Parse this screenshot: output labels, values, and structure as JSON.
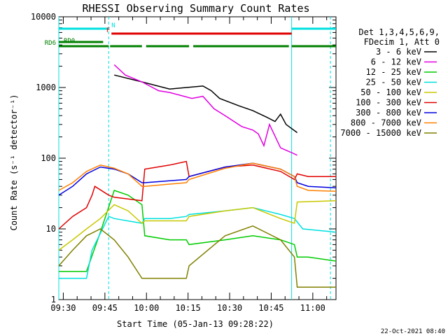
{
  "chart_data": {
    "type": "line",
    "title": "RHESSI Observing Summary Count Rates",
    "xlabel": "Start Time (05-Jan-13 09:28:22)",
    "ylabel": "Count Rate (s⁻¹ detector⁻¹)",
    "yscale": "log",
    "ylim": [
      1,
      10000
    ],
    "xlim_minutes": [
      0,
      100
    ],
    "x_ticks": [
      "09:30",
      "09:45",
      "10:00",
      "10:15",
      "10:30",
      "10:45",
      "11:00"
    ],
    "y_ticks": [
      "1",
      "10",
      "100",
      "1000",
      "10000"
    ],
    "date_stamp": "22-Oct-2021 08:40",
    "legend_header": [
      "Det 1,3,4,5,6,9,",
      "FDecim 1, Att 0"
    ],
    "series": [
      {
        "name": "3 - 6 keV",
        "color": "#000000",
        "x": [
          20,
          30,
          40,
          52,
          55,
          58,
          65,
          70,
          75,
          78,
          80,
          82,
          86
        ],
        "y": [
          1500,
          1200,
          950,
          1050,
          900,
          700,
          550,
          470,
          380,
          330,
          420,
          300,
          230
        ]
      },
      {
        "name": "6 - 12 keV",
        "color": "#e000e0",
        "x": [
          20,
          24,
          30,
          36,
          40,
          48,
          52,
          56,
          60,
          66,
          70,
          72,
          74,
          76,
          80,
          84,
          86
        ],
        "y": [
          2100,
          1500,
          1200,
          900,
          850,
          700,
          750,
          500,
          400,
          280,
          250,
          220,
          150,
          300,
          140,
          120,
          110
        ]
      },
      {
        "name": "12 - 25 keV",
        "color": "#00cc00",
        "x": [
          0,
          10,
          15,
          20,
          25,
          30,
          31,
          40,
          46,
          47,
          60,
          70,
          80,
          85,
          86,
          90,
          100
        ],
        "y": [
          2.5,
          2.5,
          9,
          35,
          30,
          22,
          8,
          7,
          7,
          6,
          7,
          8,
          7,
          6,
          4,
          4,
          3.5
        ]
      },
      {
        "name": "25 - 50 keV",
        "color": "#00e0e0",
        "x": [
          0,
          10,
          12,
          18,
          20,
          30,
          31,
          40,
          46,
          47,
          60,
          70,
          80,
          85,
          88,
          100
        ],
        "y": [
          2,
          2,
          5,
          15,
          14,
          12,
          14,
          14,
          15,
          16,
          18,
          20,
          16,
          14,
          10,
          9
        ]
      },
      {
        "name": "50 - 100 keV",
        "color": "#c8c800",
        "x": [
          0,
          5,
          10,
          15,
          20,
          25,
          30,
          31,
          40,
          46,
          47,
          60,
          70,
          80,
          85,
          86,
          100
        ],
        "y": [
          5,
          7,
          10,
          14,
          22,
          18,
          12,
          13,
          13,
          13,
          15,
          18,
          20,
          14,
          12,
          24,
          25
        ]
      },
      {
        "name": "100 - 300 keV",
        "color": "#e00000",
        "x": [
          0,
          5,
          10,
          12,
          13,
          18,
          20,
          30,
          31,
          40,
          46,
          47,
          60,
          70,
          80,
          85,
          86,
          90,
          100
        ],
        "y": [
          10,
          15,
          20,
          30,
          40,
          30,
          28,
          25,
          70,
          80,
          90,
          55,
          75,
          80,
          65,
          50,
          60,
          55,
          55
        ]
      },
      {
        "name": "300 - 800 keV",
        "color": "#0000e0",
        "x": [
          0,
          5,
          10,
          15,
          20,
          25,
          30,
          31,
          40,
          46,
          47,
          60,
          70,
          80,
          85,
          86,
          90,
          100
        ],
        "y": [
          30,
          40,
          60,
          75,
          70,
          60,
          45,
          45,
          48,
          50,
          55,
          75,
          85,
          70,
          55,
          45,
          40,
          38
        ]
      },
      {
        "name": "800 - 7000 keV",
        "color": "#ff8000",
        "x": [
          0,
          5,
          10,
          15,
          20,
          25,
          30,
          31,
          40,
          46,
          47,
          60,
          70,
          80,
          85,
          86,
          90,
          100
        ],
        "y": [
          35,
          45,
          65,
          80,
          72,
          60,
          40,
          40,
          43,
          45,
          50,
          72,
          85,
          70,
          55,
          40,
          35,
          34
        ]
      },
      {
        "name": "7000 - 15000 keV",
        "color": "#808000",
        "x": [
          0,
          5,
          10,
          15,
          20,
          25,
          30,
          31,
          40,
          46,
          47,
          60,
          70,
          80,
          85,
          86,
          90,
          100
        ],
        "y": [
          3,
          5,
          8,
          10,
          7,
          4,
          2,
          2,
          2,
          2,
          3,
          8,
          11,
          7,
          4,
          1.5,
          1.5,
          1.5
        ]
      }
    ],
    "flags": [
      {
        "label": "N",
        "color": "#00e0e0",
        "segments": [
          [
            0,
            18
          ],
          [
            84,
            100
          ]
        ]
      },
      {
        "label": "F",
        "color": "#e00000",
        "segments": [
          [
            19,
            84
          ]
        ]
      },
      {
        "label": "RD0",
        "color": "#008000",
        "segments": [
          [
            0,
            16
          ]
        ]
      },
      {
        "label": "RD6",
        "color": "#008000",
        "segments": [
          [
            0,
            18
          ],
          [
            18.5,
            30
          ],
          [
            31.5,
            47
          ],
          [
            48.5,
            83
          ],
          [
            84,
            100
          ]
        ]
      }
    ]
  }
}
